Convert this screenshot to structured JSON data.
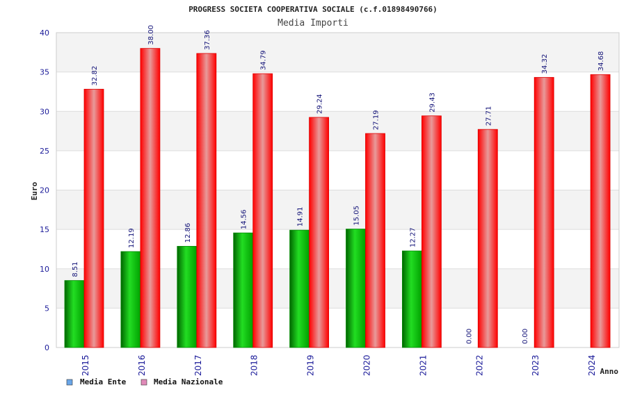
{
  "chart_data": {
    "type": "bar",
    "title": "PROGRESS SOCIETA COOPERATIVA SOCIALE (c.f.01898490766)",
    "subtitle": "Media Importi",
    "xlabel": "Anno",
    "ylabel": "Euro",
    "ylim": [
      0,
      40
    ],
    "yticks": [
      0,
      5,
      10,
      15,
      20,
      25,
      30,
      35,
      40
    ],
    "categories": [
      "2015",
      "2016",
      "2017",
      "2018",
      "2019",
      "2020",
      "2021",
      "2022",
      "2023",
      "2024"
    ],
    "series": [
      {
        "name": "Media Ente",
        "color": "#00b800",
        "legend_color": "#6aa6e8",
        "values": [
          8.51,
          12.19,
          12.86,
          14.56,
          14.91,
          15.05,
          12.27,
          0.0,
          0.0,
          null
        ],
        "labels": [
          "8.51",
          "12.19",
          "12.86",
          "14.56",
          "14.91",
          "15.05",
          "12.27",
          "0.00",
          "0.00",
          ""
        ]
      },
      {
        "name": "Media Nazionale",
        "color": "#ee1111",
        "legend_color": "#e08ab8",
        "values": [
          32.82,
          38.0,
          37.36,
          34.79,
          29.24,
          27.19,
          29.43,
          27.71,
          34.32,
          34.68
        ],
        "labels": [
          "32.82",
          "38.00",
          "37.36",
          "34.79",
          "29.24",
          "27.19",
          "29.43",
          "27.71",
          "34.32",
          "34.68"
        ]
      }
    ],
    "grid": true,
    "legend": "bottom-left"
  }
}
